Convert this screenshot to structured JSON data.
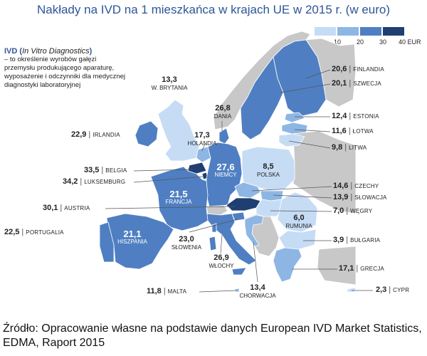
{
  "title": "Nakłady na IVD na 1 mieszkańca w krajach UE w 2015 r. (w euro)",
  "legend": {
    "ticks": [
      "0",
      "10",
      "20",
      "30",
      "40 EUR"
    ],
    "colors": [
      "#c6dcf5",
      "#8db6e5",
      "#4f7fc2",
      "#1f3f73"
    ]
  },
  "description": {
    "abbr": "IVD",
    "expansion": "In Vitro Diagnostics",
    "text": "– to określenie wyrobów gałęzi przemysłu produkującego aparaturę, wyposażenie i odczynniki dla medycznej diagnostyki laboratoryjnej"
  },
  "colors": {
    "no_data": "#c8c8c8",
    "outline": "#ffffff",
    "light_label": "#ffffff"
  },
  "countries": [
    {
      "name": "FINLANDIA",
      "value": "20,6"
    },
    {
      "name": "SZWECJA",
      "value": "20,1"
    },
    {
      "name": "ESTONIA",
      "value": "12,4"
    },
    {
      "name": "ŁOTWA",
      "value": "11,6"
    },
    {
      "name": "LITWA",
      "value": "9,8"
    },
    {
      "name": "W. BRYTANIA",
      "value": "13,3"
    },
    {
      "name": "DANIA",
      "value": "26,8"
    },
    {
      "name": "HOLANDIA",
      "value": "17,3"
    },
    {
      "name": "IRLANDIA",
      "value": "22,9"
    },
    {
      "name": "BELGIA",
      "value": "33,5"
    },
    {
      "name": "LUKSEMBURG",
      "value": "34,2"
    },
    {
      "name": "NIEMCY",
      "value": "27,6"
    },
    {
      "name": "POLSKA",
      "value": "8,5"
    },
    {
      "name": "CZECHY",
      "value": "14,6"
    },
    {
      "name": "SŁOWACJA",
      "value": "13,9"
    },
    {
      "name": "WĘGRY",
      "value": "7,0"
    },
    {
      "name": "AUSTRIA",
      "value": "30,1"
    },
    {
      "name": "FRANCJA",
      "value": "21,5"
    },
    {
      "name": "PORTUGALIA",
      "value": "22,5"
    },
    {
      "name": "HISZPANIA",
      "value": "21,1"
    },
    {
      "name": "SŁOWENIA",
      "value": "23,0"
    },
    {
      "name": "WŁOCHY",
      "value": "26,9"
    },
    {
      "name": "RUMUNIA",
      "value": "6,0"
    },
    {
      "name": "BUŁGARIA",
      "value": "3,9"
    },
    {
      "name": "GRECJA",
      "value": "17,1"
    },
    {
      "name": "MALTA",
      "value": "11,8"
    },
    {
      "name": "CHORWACJA",
      "value": "13,4"
    },
    {
      "name": "CYPR",
      "value": "2,3"
    }
  ],
  "source": "Źródło: Opracowanie własne na podstawie danych European IVD Market Statistics, EDMA, Raport 2015"
}
